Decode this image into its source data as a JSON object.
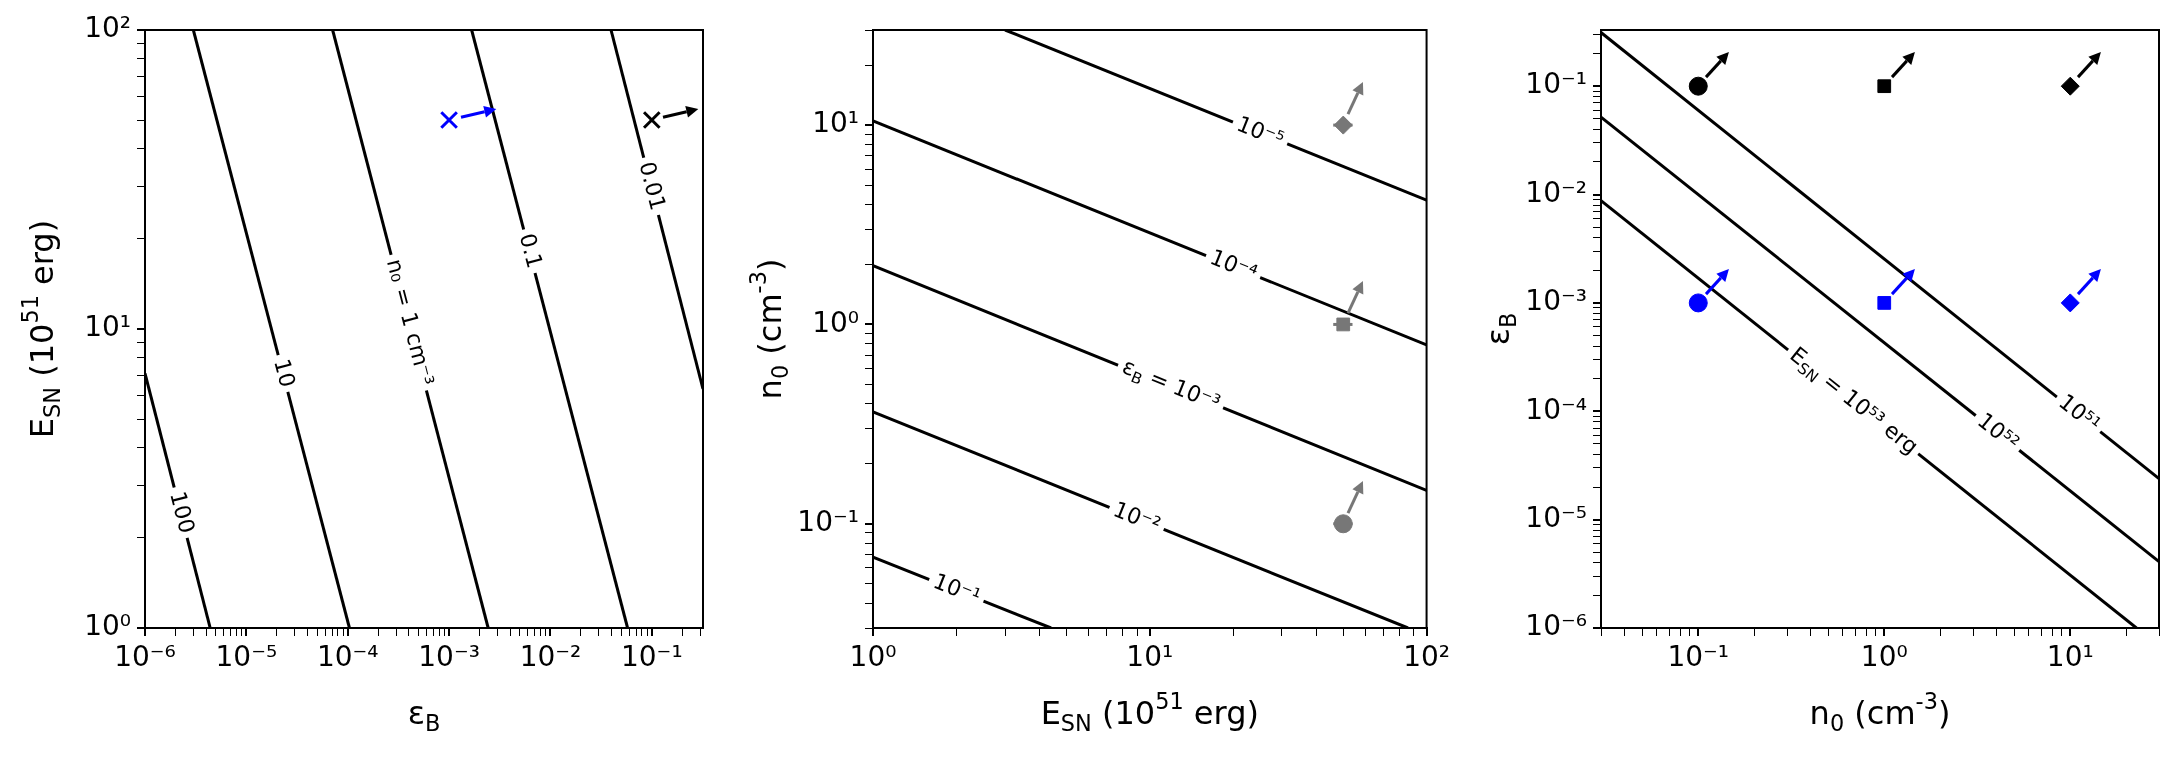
{
  "chart_data": [
    {
      "type": "line",
      "xlabel": "ε$_{B}$",
      "ylabel": "E$_{SN}$ (10$^{51}$ erg)",
      "log": "xy",
      "grid": false,
      "xlim": [
        1e-06,
        0.32
      ],
      "ylim": [
        1,
        100
      ],
      "xticks": [
        {
          "value": 1e-06,
          "label": "10⁻⁶"
        },
        {
          "value": 2e-06,
          "label": null
        },
        {
          "value": 3e-06,
          "label": null
        },
        {
          "value": 4e-06,
          "label": null
        },
        {
          "value": 5e-06,
          "label": null
        },
        {
          "value": 6e-06,
          "label": null
        },
        {
          "value": 7e-06,
          "label": null
        },
        {
          "value": 8e-06,
          "label": null
        },
        {
          "value": 9e-06,
          "label": null
        },
        {
          "value": 1e-05,
          "label": "10⁻⁵"
        },
        {
          "value": 2e-05,
          "label": null
        },
        {
          "value": 3e-05,
          "label": null
        },
        {
          "value": 4e-05,
          "label": null
        },
        {
          "value": 5e-05,
          "label": null
        },
        {
          "value": 6e-05,
          "label": null
        },
        {
          "value": 7e-05,
          "label": null
        },
        {
          "value": 8e-05,
          "label": null
        },
        {
          "value": 9e-05,
          "label": null
        },
        {
          "value": 0.0001,
          "label": "10⁻⁴"
        },
        {
          "value": 0.0002,
          "label": null
        },
        {
          "value": 0.0003,
          "label": null
        },
        {
          "value": 0.0004,
          "label": null
        },
        {
          "value": 0.0005,
          "label": null
        },
        {
          "value": 0.0006,
          "label": null
        },
        {
          "value": 0.0007,
          "label": null
        },
        {
          "value": 0.0008,
          "label": null
        },
        {
          "value": 0.0009,
          "label": null
        },
        {
          "value": 0.001,
          "label": "10⁻³"
        },
        {
          "value": 0.002,
          "label": null
        },
        {
          "value": 0.003,
          "label": null
        },
        {
          "value": 0.004,
          "label": null
        },
        {
          "value": 0.005,
          "label": null
        },
        {
          "value": 0.006,
          "label": null
        },
        {
          "value": 0.007,
          "label": null
        },
        {
          "value": 0.008,
          "label": null
        },
        {
          "value": 0.009,
          "label": null
        },
        {
          "value": 0.01,
          "label": "10⁻²"
        },
        {
          "value": 0.02,
          "label": null
        },
        {
          "value": 0.03,
          "label": null
        },
        {
          "value": 0.04,
          "label": null
        },
        {
          "value": 0.05,
          "label": null
        },
        {
          "value": 0.06,
          "label": null
        },
        {
          "value": 0.07,
          "label": null
        },
        {
          "value": 0.08,
          "label": null
        },
        {
          "value": 0.09,
          "label": null
        },
        {
          "value": 0.1,
          "label": "10⁻¹"
        },
        {
          "value": 0.2,
          "label": null
        },
        {
          "value": 0.3,
          "label": null
        }
      ],
      "yticks": [
        {
          "value": 1,
          "label": "10⁰"
        },
        {
          "value": 2,
          "label": null
        },
        {
          "value": 3,
          "label": null
        },
        {
          "value": 4,
          "label": null
        },
        {
          "value": 5,
          "label": null
        },
        {
          "value": 6,
          "label": null
        },
        {
          "value": 7,
          "label": null
        },
        {
          "value": 8,
          "label": null
        },
        {
          "value": 9,
          "label": null
        },
        {
          "value": 10,
          "label": "10¹"
        },
        {
          "value": 20,
          "label": null
        },
        {
          "value": 30,
          "label": null
        },
        {
          "value": 40,
          "label": null
        },
        {
          "value": 50,
          "label": null
        },
        {
          "value": 60,
          "label": null
        },
        {
          "value": 70,
          "label": null
        },
        {
          "value": 80,
          "label": null
        },
        {
          "value": 90,
          "label": null
        },
        {
          "value": 100,
          "label": "10²"
        }
      ],
      "series": [
        {
          "type": "line",
          "color": "#000000",
          "marker": "none",
          "x": [
            1e-06,
            4.4e-06
          ],
          "values": [
            7.1,
            1
          ]
        },
        {
          "type": "line",
          "color": "#000000",
          "marker": "none",
          "x": [
            3e-06,
            0.000104
          ],
          "values": [
            100,
            1
          ]
        },
        {
          "type": "line",
          "color": "#000000",
          "marker": "none",
          "x": [
            7.1e-05,
            0.00243
          ],
          "values": [
            100,
            1
          ]
        },
        {
          "type": "line",
          "color": "#000000",
          "marker": "none",
          "x": [
            0.00167,
            0.0577
          ],
          "values": [
            100,
            1
          ]
        },
        {
          "type": "line",
          "color": "#000000",
          "marker": "none",
          "x": [
            0.0396,
            0.32
          ],
          "values": [
            100,
            6.3
          ]
        },
        {
          "type": "scatter",
          "color": "#0000ff",
          "marker": "cross",
          "x": [
            0.001
          ],
          "values": [
            50
          ]
        },
        {
          "type": "scatter",
          "color": "#000000",
          "marker": "cross",
          "x": [
            0.1
          ],
          "values": [
            50
          ]
        }
      ],
      "annotations": [
        {
          "text": "100",
          "x": 2.25e-06,
          "y": 2.43
        },
        {
          "text": "10",
          "x": 2.3e-05,
          "y": 7.1
        },
        {
          "text": "n₀ = 1 cm⁻³",
          "x": 0.0004,
          "y": 10.5
        },
        {
          "text": "0.1",
          "x": 0.0062,
          "y": 18.2
        },
        {
          "text": "0.01",
          "x": 0.098,
          "y": 30
        }
      ]
    },
    {
      "type": "line",
      "xlabel": "E$_{SN}$ (10$^{51}$ erg)",
      "ylabel": "n$_{0}$ (cm$^{-3}$)",
      "log": "xy",
      "grid": false,
      "xlim": [
        1,
        100
      ],
      "ylim": [
        0.03,
        30
      ],
      "xticks": [
        {
          "value": 1,
          "label": "10⁰"
        },
        {
          "value": 2,
          "label": null
        },
        {
          "value": 3,
          "label": null
        },
        {
          "value": 4,
          "label": null
        },
        {
          "value": 5,
          "label": null
        },
        {
          "value": 6,
          "label": null
        },
        {
          "value": 7,
          "label": null
        },
        {
          "value": 8,
          "label": null
        },
        {
          "value": 9,
          "label": null
        },
        {
          "value": 10,
          "label": "10¹"
        },
        {
          "value": 20,
          "label": null
        },
        {
          "value": 30,
          "label": null
        },
        {
          "value": 40,
          "label": null
        },
        {
          "value": 50,
          "label": null
        },
        {
          "value": 60,
          "label": null
        },
        {
          "value": 70,
          "label": null
        },
        {
          "value": 80,
          "label": null
        },
        {
          "value": 90,
          "label": null
        },
        {
          "value": 100,
          "label": "10²"
        }
      ],
      "yticks": [
        {
          "value": 0.03,
          "label": null
        },
        {
          "value": 0.04,
          "label": null
        },
        {
          "value": 0.05,
          "label": null
        },
        {
          "value": 0.06,
          "label": null
        },
        {
          "value": 0.07,
          "label": null
        },
        {
          "value": 0.08,
          "label": null
        },
        {
          "value": 0.09,
          "label": null
        },
        {
          "value": 0.1,
          "label": "10⁻¹"
        },
        {
          "value": 0.2,
          "label": null
        },
        {
          "value": 0.3,
          "label": null
        },
        {
          "value": 0.4,
          "label": null
        },
        {
          "value": 0.5,
          "label": null
        },
        {
          "value": 0.6,
          "label": null
        },
        {
          "value": 0.7,
          "label": null
        },
        {
          "value": 0.8,
          "label": null
        },
        {
          "value": 0.9,
          "label": null
        },
        {
          "value": 1,
          "label": "10⁰"
        },
        {
          "value": 2,
          "label": null
        },
        {
          "value": 3,
          "label": null
        },
        {
          "value": 4,
          "label": null
        },
        {
          "value": 5,
          "label": null
        },
        {
          "value": 6,
          "label": null
        },
        {
          "value": 7,
          "label": null
        },
        {
          "value": 8,
          "label": null
        },
        {
          "value": 9,
          "label": null
        },
        {
          "value": 10,
          "label": "10¹"
        },
        {
          "value": 20,
          "label": null
        },
        {
          "value": 30,
          "label": null
        }
      ],
      "series": [
        {
          "type": "line",
          "color": "#000000",
          "marker": "none",
          "x": [
            3.0,
            100
          ],
          "values": [
            30,
            4.2
          ]
        },
        {
          "type": "line",
          "color": "#000000",
          "marker": "none",
          "x": [
            1,
            100
          ],
          "values": [
            10.5,
            0.79
          ]
        },
        {
          "type": "line",
          "color": "#000000",
          "marker": "none",
          "x": [
            1,
            100
          ],
          "values": [
            1.97,
            0.147
          ]
        },
        {
          "type": "line",
          "color": "#000000",
          "marker": "none",
          "x": [
            1,
            85.7
          ],
          "values": [
            0.364,
            0.03
          ]
        },
        {
          "type": "line",
          "color": "#000000",
          "marker": "none",
          "x": [
            1,
            4.4
          ],
          "values": [
            0.068,
            0.03
          ]
        },
        {
          "type": "scatter",
          "color": "#777777",
          "marker": "diamond",
          "x": [
            50
          ],
          "values": [
            10
          ],
          "xerrors": [
            4
          ]
        },
        {
          "type": "scatter",
          "color": "#777777",
          "marker": "square",
          "x": [
            50
          ],
          "values": [
            1
          ],
          "xerrors": [
            4
          ]
        },
        {
          "type": "scatter",
          "color": "#777777",
          "marker": "circle",
          "x": [
            50
          ],
          "values": [
            0.1
          ],
          "xerrors": [
            4
          ]
        }
      ],
      "annotations": [
        {
          "text": "10⁻⁵",
          "x": 25,
          "y": 9.1
        },
        {
          "text": "10⁻⁴",
          "x": 20,
          "y": 1.95
        },
        {
          "text": "ε$_{B}$ = 10⁻³",
          "x": 11.9,
          "y": 0.49
        },
        {
          "text": "10⁻²",
          "x": 8.95,
          "y": 0.106
        },
        {
          "text": "10⁻¹",
          "x": 2.0,
          "y": 0.0463
        }
      ]
    },
    {
      "type": "line",
      "xlabel": "n$_{0}$ (cm$^{-3}$)",
      "ylabel": "ε$_{B}$",
      "log": "xy",
      "grid": false,
      "xlim": [
        0.03,
        30
      ],
      "ylim": [
        1e-06,
        0.33
      ],
      "xticks": [
        {
          "value": 0.03,
          "label": null
        },
        {
          "value": 0.04,
          "label": null
        },
        {
          "value": 0.05,
          "label": null
        },
        {
          "value": 0.06,
          "label": null
        },
        {
          "value": 0.07,
          "label": null
        },
        {
          "value": 0.08,
          "label": null
        },
        {
          "value": 0.09,
          "label": null
        },
        {
          "value": 0.1,
          "label": "10⁻¹"
        },
        {
          "value": 0.2,
          "label": null
        },
        {
          "value": 0.3,
          "label": null
        },
        {
          "value": 0.4,
          "label": null
        },
        {
          "value": 0.5,
          "label": null
        },
        {
          "value": 0.6,
          "label": null
        },
        {
          "value": 0.7,
          "label": null
        },
        {
          "value": 0.8,
          "label": null
        },
        {
          "value": 0.9,
          "label": null
        },
        {
          "value": 1,
          "label": "10⁰"
        },
        {
          "value": 2,
          "label": null
        },
        {
          "value": 3,
          "label": null
        },
        {
          "value": 4,
          "label": null
        },
        {
          "value": 5,
          "label": null
        },
        {
          "value": 6,
          "label": null
        },
        {
          "value": 7,
          "label": null
        },
        {
          "value": 8,
          "label": null
        },
        {
          "value": 9,
          "label": null
        },
        {
          "value": 10,
          "label": "10¹"
        },
        {
          "value": 20,
          "label": null
        },
        {
          "value": 30,
          "label": null
        }
      ],
      "yticks": [
        {
          "value": 1e-06,
          "label": "10⁻⁶"
        },
        {
          "value": 2e-06,
          "label": null
        },
        {
          "value": 3e-06,
          "label": null
        },
        {
          "value": 4e-06,
          "label": null
        },
        {
          "value": 5e-06,
          "label": null
        },
        {
          "value": 6e-06,
          "label": null
        },
        {
          "value": 7e-06,
          "label": null
        },
        {
          "value": 8e-06,
          "label": null
        },
        {
          "value": 9e-06,
          "label": null
        },
        {
          "value": 1e-05,
          "label": "10⁻⁵"
        },
        {
          "value": 2e-05,
          "label": null
        },
        {
          "value": 3e-05,
          "label": null
        },
        {
          "value": 4e-05,
          "label": null
        },
        {
          "value": 5e-05,
          "label": null
        },
        {
          "value": 6e-05,
          "label": null
        },
        {
          "value": 7e-05,
          "label": null
        },
        {
          "value": 8e-05,
          "label": null
        },
        {
          "value": 9e-05,
          "label": null
        },
        {
          "value": 0.0001,
          "label": "10⁻⁴"
        },
        {
          "value": 0.0002,
          "label": null
        },
        {
          "value": 0.0003,
          "label": null
        },
        {
          "value": 0.0004,
          "label": null
        },
        {
          "value": 0.0005,
          "label": null
        },
        {
          "value": 0.0006,
          "label": null
        },
        {
          "value": 0.0007,
          "label": null
        },
        {
          "value": 0.0008,
          "label": null
        },
        {
          "value": 0.0009,
          "label": null
        },
        {
          "value": 0.001,
          "label": "10⁻³"
        },
        {
          "value": 0.002,
          "label": null
        },
        {
          "value": 0.003,
          "label": null
        },
        {
          "value": 0.004,
          "label": null
        },
        {
          "value": 0.005,
          "label": null
        },
        {
          "value": 0.006,
          "label": null
        },
        {
          "value": 0.007,
          "label": null
        },
        {
          "value": 0.008,
          "label": null
        },
        {
          "value": 0.009,
          "label": null
        },
        {
          "value": 0.01,
          "label": "10⁻²"
        },
        {
          "value": 0.02,
          "label": null
        },
        {
          "value": 0.03,
          "label": null
        },
        {
          "value": 0.04,
          "label": null
        },
        {
          "value": 0.05,
          "label": null
        },
        {
          "value": 0.06,
          "label": null
        },
        {
          "value": 0.07,
          "label": null
        },
        {
          "value": 0.08,
          "label": null
        },
        {
          "value": 0.09,
          "label": null
        },
        {
          "value": 0.1,
          "label": "10⁻¹"
        },
        {
          "value": 0.2,
          "label": null
        },
        {
          "value": 0.3,
          "label": null
        }
      ],
      "series": [
        {
          "type": "line",
          "color": "#000000",
          "marker": "none",
          "x": [
            0.03,
            30
          ],
          "values": [
            0.313,
            2.39e-05
          ]
        },
        {
          "type": "line",
          "color": "#000000",
          "marker": "none",
          "x": [
            0.03,
            30
          ],
          "values": [
            0.0519,
            4.1e-06
          ]
        },
        {
          "type": "line",
          "color": "#000000",
          "marker": "none",
          "x": [
            0.03,
            22.7
          ],
          "values": [
            0.0088,
            1e-06
          ]
        },
        {
          "type": "scatter",
          "color": "#000000",
          "marker": "circle",
          "x": [
            0.1
          ],
          "values": [
            0.1
          ]
        },
        {
          "type": "scatter",
          "color": "#000000",
          "marker": "square",
          "x": [
            1
          ],
          "values": [
            0.1
          ]
        },
        {
          "type": "scatter",
          "color": "#000000",
          "marker": "diamond",
          "x": [
            10
          ],
          "values": [
            0.1
          ]
        },
        {
          "type": "scatter",
          "color": "#0000ff",
          "marker": "circle",
          "x": [
            0.1
          ],
          "values": [
            0.001
          ]
        },
        {
          "type": "scatter",
          "color": "#0000ff",
          "marker": "square",
          "x": [
            1
          ],
          "values": [
            0.001
          ]
        },
        {
          "type": "scatter",
          "color": "#0000ff",
          "marker": "diamond",
          "x": [
            10
          ],
          "values": [
            0.001
          ]
        }
      ],
      "annotations": [
        {
          "text": "10⁵¹",
          "x": 11.1,
          "y": 9.4e-05
        },
        {
          "text": "10⁵²",
          "x": 4.06,
          "y": 6.3e-05
        },
        {
          "text": "E$_{SN}$ = 10⁵³ erg",
          "x": 0.68,
          "y": 0.000122
        }
      ]
    }
  ]
}
